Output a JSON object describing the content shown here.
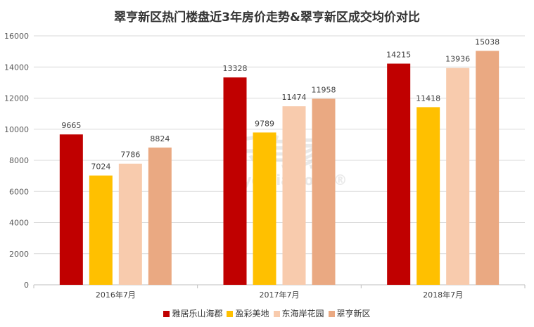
{
  "watermark": {
    "brand": "乐有家",
    "domain": "leyoujia.com",
    "mark": "®"
  },
  "chart_data": {
    "type": "bar",
    "title": "翠亨新区热门楼盘近3年房价走势&翠亨新区成交均价对比",
    "xlabel": "",
    "ylabel": "",
    "ylim": [
      0,
      16000
    ],
    "yticks": [
      0,
      2000,
      4000,
      6000,
      8000,
      10000,
      12000,
      14000,
      16000
    ],
    "categories": [
      "2016年7月",
      "2017年7月",
      "2018年7月"
    ],
    "grid": true,
    "legend_position": "bottom",
    "series": [
      {
        "name": "雅居乐山海郡",
        "color": "#c00000",
        "values": [
          9665,
          13328,
          14215
        ]
      },
      {
        "name": "盈彩美地",
        "color": "#ffc000",
        "values": [
          7024,
          9789,
          11418
        ]
      },
      {
        "name": "东海岸花园",
        "color": "#f8cbad",
        "values": [
          7786,
          11474,
          13936
        ]
      },
      {
        "name": "翠亨新区",
        "color": "#eaa982",
        "values": [
          8824,
          11958,
          15038
        ]
      }
    ]
  }
}
